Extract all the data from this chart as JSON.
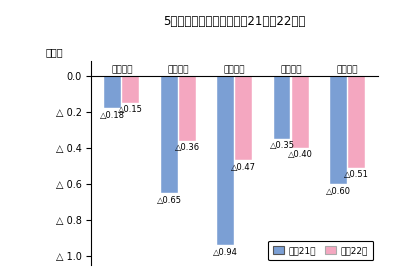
{
  "title": "5圈域別社会増減率（平成21年、22年）",
  "categories": [
    "岐阜圈域",
    "西濃圈域",
    "中濃圈域",
    "東濃圈域",
    "飛騰圈域"
  ],
  "series": [
    {
      "label": "平成21年",
      "values": [
        -0.18,
        -0.65,
        -0.94,
        -0.35,
        -0.6
      ],
      "color": "#7b9fd4"
    },
    {
      "label": "平成22年",
      "values": [
        -0.15,
        -0.36,
        -0.47,
        -0.4,
        -0.51
      ],
      "color": "#f4a7c0"
    }
  ],
  "ylabel": "（％）",
  "yticks": [
    0.0,
    -0.2,
    -0.4,
    -0.6,
    -0.8,
    -1.0
  ],
  "ylim": [
    -1.05,
    0.08
  ],
  "ann21": [
    -0.18,
    -0.65,
    -0.94,
    -0.35,
    -0.6
  ],
  "ann22": [
    -0.15,
    -0.36,
    -0.47,
    -0.4,
    -0.51
  ],
  "ann21_labels": [
    "△0.18",
    "△0.65",
    "△0.94",
    "△0.35",
    "△0.60"
  ],
  "ann22_labels": [
    "△0.15",
    "△0.36",
    "△0.47",
    "△0.40",
    "△0.51"
  ],
  "background_color": "#ffffff",
  "legend_labels": [
    "平成21年",
    "平成22年"
  ],
  "legend_colors": [
    "#7b9fd4",
    "#f4a7c0"
  ]
}
